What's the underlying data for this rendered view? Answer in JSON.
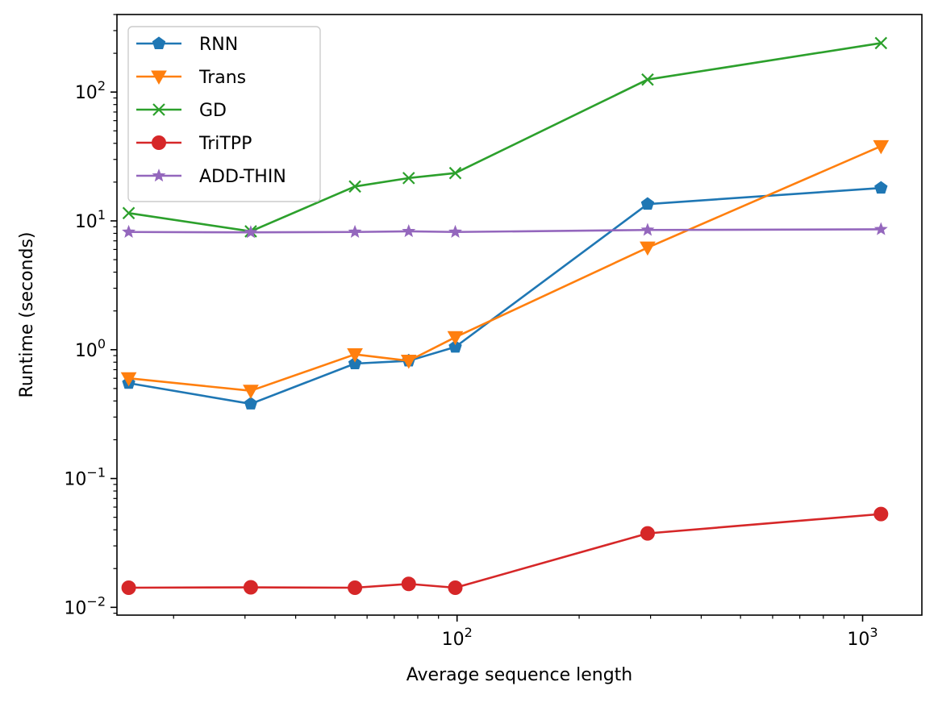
{
  "chart_data": {
    "type": "line",
    "title": "",
    "xlabel": "Average sequence length",
    "ylabel": "Runtime (seconds)",
    "xscale": "log",
    "yscale": "log",
    "xlim": [
      14.5,
      1400
    ],
    "ylim": [
      0.0087,
      400
    ],
    "x_major_ticks": [
      {
        "value": 100,
        "base": "10",
        "exp": "2"
      },
      {
        "value": 1000,
        "base": "10",
        "exp": "3"
      }
    ],
    "y_major_ticks": [
      {
        "value": 0.01,
        "base": "10",
        "exp": "−2"
      },
      {
        "value": 0.1,
        "base": "10",
        "exp": "−1"
      },
      {
        "value": 1,
        "base": "10",
        "exp": "0"
      },
      {
        "value": 10,
        "base": "10",
        "exp": "1"
      },
      {
        "value": 100,
        "base": "10",
        "exp": "2"
      }
    ],
    "grid": false,
    "legend_position": "upper-left",
    "x": [
      15.5,
      31,
      56,
      76,
      99,
      295,
      1110
    ],
    "series": [
      {
        "name": "RNN",
        "color": "#1f77b4",
        "marker": "pentagon",
        "values": [
          0.55,
          0.38,
          0.78,
          0.82,
          1.05,
          13.5,
          18.0
        ]
      },
      {
        "name": "Trans",
        "color": "#ff7f0e",
        "marker": "triangle-down",
        "values": [
          0.6,
          0.48,
          0.92,
          0.82,
          1.25,
          6.2,
          38.0
        ]
      },
      {
        "name": "GD",
        "color": "#2ca02c",
        "marker": "x",
        "values": [
          11.5,
          8.3,
          18.5,
          21.5,
          23.5,
          125,
          240
        ]
      },
      {
        "name": "TriTPP",
        "color": "#d62728",
        "marker": "circle",
        "values": [
          0.0142,
          0.0143,
          0.0142,
          0.0152,
          0.0142,
          0.0375,
          0.053
        ]
      },
      {
        "name": "ADD-THIN",
        "color": "#9467bd",
        "marker": "star",
        "values": [
          8.2,
          8.15,
          8.2,
          8.3,
          8.2,
          8.5,
          8.6
        ]
      }
    ]
  }
}
